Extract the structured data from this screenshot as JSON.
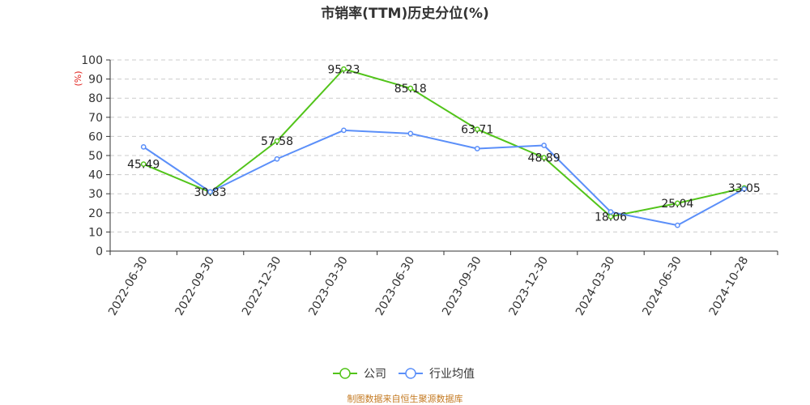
{
  "chart_data": {
    "type": "line",
    "title": "市销率(TTM)历史分位(%)",
    "ylabel": "(%)",
    "xlabel": "",
    "ylim": [
      0,
      100
    ],
    "yticks": [
      0,
      10,
      20,
      30,
      40,
      50,
      60,
      70,
      80,
      90,
      100
    ],
    "grid": "horizontal dashed",
    "legend_position": "bottom-center",
    "categories": [
      "2022-06-30",
      "2022-09-30",
      "2022-12-30",
      "2023-03-30",
      "2023-06-30",
      "2023-09-30",
      "2023-12-30",
      "2024-03-30",
      "2024-06-30",
      "2024-10-28"
    ],
    "series": [
      {
        "name": "公司",
        "color": "#52c41a",
        "values": [
          45.49,
          30.83,
          57.58,
          95.23,
          85.18,
          63.71,
          48.89,
          18.06,
          25.04,
          33.05
        ],
        "value_labels": [
          "45.49",
          "30.83",
          "57.58",
          "95.23",
          "85.18",
          "63.71",
          "48.89",
          "18.06",
          "25.04",
          "33.05"
        ]
      },
      {
        "name": "行业均值",
        "color": "#5b8ff9",
        "values": [
          54.5,
          31.0,
          48.2,
          63.2,
          61.5,
          53.6,
          55.3,
          20.5,
          13.5,
          32.5
        ]
      }
    ],
    "source": "制图数据来自恒生聚源数据库"
  }
}
